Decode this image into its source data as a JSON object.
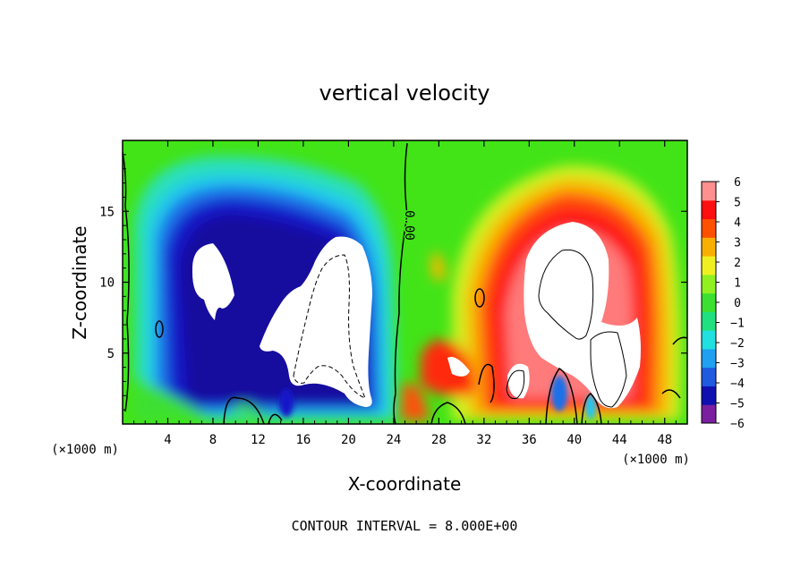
{
  "chart_data": {
    "type": "heatmap",
    "title": "vertical velocity",
    "xlabel": "X-coordinate",
    "ylabel": "Z-coordinate",
    "x_unit": "(×1000 m)",
    "y_unit": "(×1000 m)",
    "xlim": [
      0,
      50
    ],
    "ylim": [
      0,
      20
    ],
    "x_ticks": [
      "4",
      "8",
      "12",
      "16",
      "20",
      "24",
      "28",
      "32",
      "36",
      "40",
      "44",
      "48"
    ],
    "y_ticks": [
      "5",
      "10",
      "15"
    ],
    "colorbar": {
      "min": -6,
      "max": 6,
      "ticks": [
        "6",
        "5",
        "4",
        "3",
        "2",
        "1",
        "0",
        "−1",
        "−2",
        "−3",
        "−4",
        "−5",
        "−6"
      ],
      "colors_low_to_high": [
        "#7a1fa0",
        "#1010b0",
        "#1f5ae0",
        "#1fa0f0",
        "#20e0e0",
        "#20e080",
        "#3ce030",
        "#90f020",
        "#f0f020",
        "#f8b000",
        "#ff5000",
        "#ff1010",
        "#ff9090"
      ]
    },
    "contour_labels": [
      "0.00"
    ],
    "footer": "CONTOUR INTERVAL = 8.000E+00"
  }
}
